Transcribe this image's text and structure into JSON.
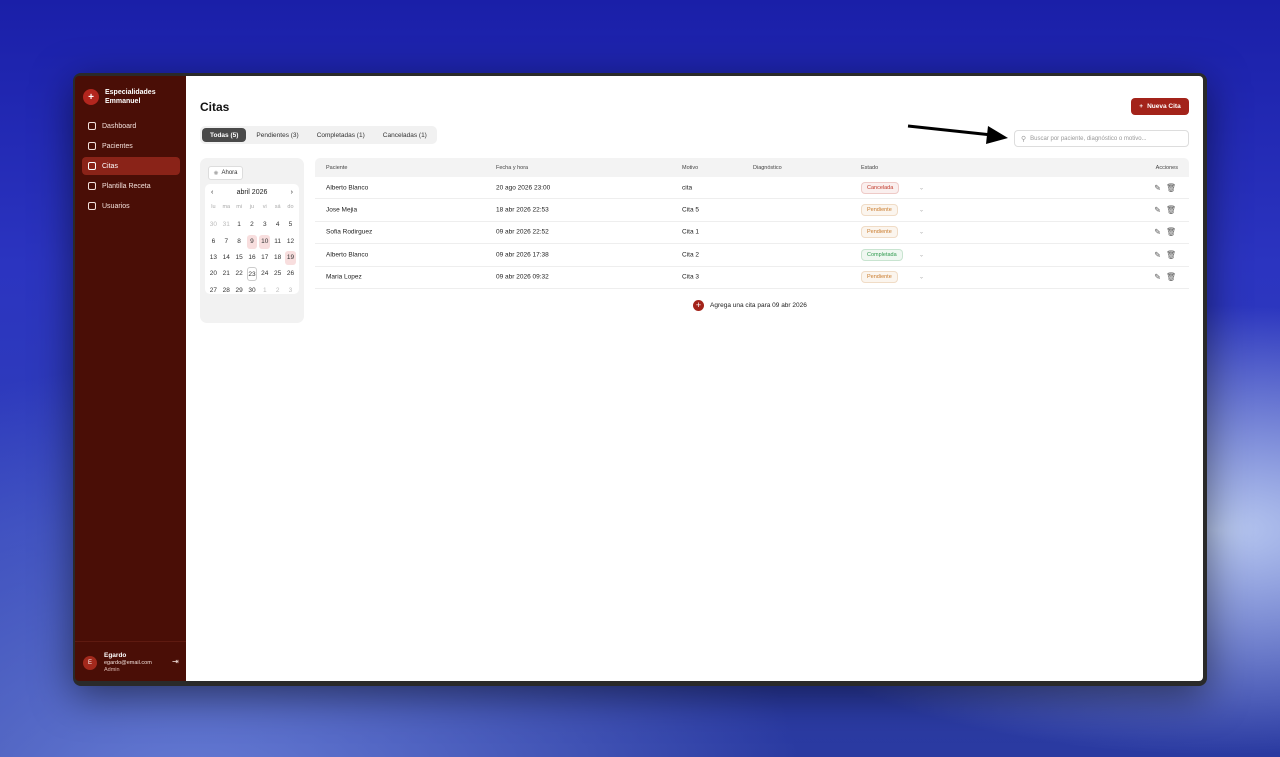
{
  "sidebar": {
    "brand": "Especialidades Emmanuel",
    "items": [
      {
        "label": "Dashboard",
        "icon": "grid-icon"
      },
      {
        "label": "Pacientes",
        "icon": "users-icon"
      },
      {
        "label": "Citas",
        "icon": "calendar-icon",
        "active": true
      },
      {
        "label": "Plantilla Receta",
        "icon": "file-icon"
      },
      {
        "label": "Usuarios",
        "icon": "user-cog-icon"
      }
    ],
    "user": {
      "initial": "E",
      "name": "Egardo",
      "email": "egardo@email.com",
      "role": "Admin"
    }
  },
  "header": {
    "title": "Citas",
    "new_button": "Nueva Cita",
    "search_placeholder": "Buscar por paciente, diagnóstico o motivo..."
  },
  "tabs": [
    {
      "label": "Todas (5)",
      "active": true
    },
    {
      "label": "Pendientes (3)"
    },
    {
      "label": "Completadas (1)"
    },
    {
      "label": "Canceladas (1)"
    }
  ],
  "calendar": {
    "now_button": "Ahora",
    "month": "abril 2026",
    "weekdays": [
      "lu",
      "ma",
      "mi",
      "ju",
      "vi",
      "sá",
      "do"
    ],
    "days": [
      [
        "30",
        "out"
      ],
      [
        "31",
        "out"
      ],
      [
        "1"
      ],
      [
        "2"
      ],
      [
        "3"
      ],
      [
        "4"
      ],
      [
        "5"
      ],
      [
        "6"
      ],
      [
        "7"
      ],
      [
        "8"
      ],
      [
        "9",
        "mark"
      ],
      [
        "10",
        "mark"
      ],
      [
        "11"
      ],
      [
        "12"
      ],
      [
        "13"
      ],
      [
        "14"
      ],
      [
        "15"
      ],
      [
        "16"
      ],
      [
        "17"
      ],
      [
        "18"
      ],
      [
        "19",
        "mark"
      ],
      [
        "20"
      ],
      [
        "21"
      ],
      [
        "22"
      ],
      [
        "23",
        "today"
      ],
      [
        "24"
      ],
      [
        "25"
      ],
      [
        "26"
      ],
      [
        "27"
      ],
      [
        "28"
      ],
      [
        "29"
      ],
      [
        "30"
      ],
      [
        "1",
        "out"
      ],
      [
        "2",
        "out"
      ],
      [
        "3",
        "out"
      ]
    ]
  },
  "table": {
    "columns": [
      "Paciente",
      "Fecha y hora",
      "Motivo",
      "Diagnóstico",
      "Estado",
      "Acciones"
    ],
    "rows": [
      {
        "paciente": "Alberto Blanco",
        "fecha": "20 ago 2026 23:00",
        "motivo": "cita",
        "diagnostico": "",
        "estado": "Cancelada"
      },
      {
        "paciente": "Jose Mejia",
        "fecha": "18 abr 2026 22:53",
        "motivo": "Cita 5",
        "diagnostico": "",
        "estado": "Pendiente"
      },
      {
        "paciente": "Sofia Rodirguez",
        "fecha": "09 abr 2026 22:52",
        "motivo": "Cita 1",
        "diagnostico": "",
        "estado": "Pendiente"
      },
      {
        "paciente": "Alberto Blanco",
        "fecha": "09 abr 2026 17:38",
        "motivo": "Cita 2",
        "diagnostico": "",
        "estado": "Completada"
      },
      {
        "paciente": "Maria Lopez",
        "fecha": "09 abr 2026 09:32",
        "motivo": "Cita 3",
        "diagnostico": "",
        "estado": "Pendiente"
      }
    ]
  },
  "add_link": "Agrega una cita para 09 abr 2026",
  "colors": {
    "accent": "#a3231a",
    "sidebar": "#4a0e06",
    "Cancelada": "#c0392b",
    "Pendiente": "#c97a2a",
    "Completada": "#2e9a4e"
  }
}
